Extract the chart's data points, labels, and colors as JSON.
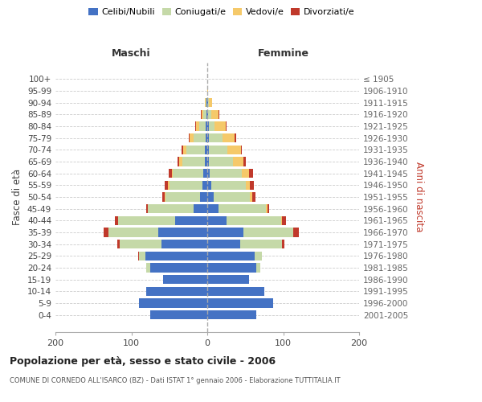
{
  "age_groups": [
    "100+",
    "95-99",
    "90-94",
    "85-89",
    "80-84",
    "75-79",
    "70-74",
    "65-69",
    "60-64",
    "55-59",
    "50-54",
    "45-49",
    "40-44",
    "35-39",
    "30-34",
    "25-29",
    "20-24",
    "15-19",
    "10-14",
    "5-9",
    "0-4"
  ],
  "birth_years": [
    "≤ 1905",
    "1906-1910",
    "1911-1915",
    "1916-1920",
    "1921-1925",
    "1926-1930",
    "1931-1935",
    "1936-1940",
    "1941-1945",
    "1946-1950",
    "1951-1955",
    "1956-1960",
    "1961-1965",
    "1966-1970",
    "1971-1975",
    "1976-1980",
    "1981-1985",
    "1986-1990",
    "1991-1995",
    "1996-2000",
    "2001-2005"
  ],
  "maschi": {
    "celibi": [
      0,
      0,
      1,
      1,
      2,
      2,
      3,
      3,
      5,
      6,
      9,
      18,
      42,
      65,
      60,
      82,
      75,
      58,
      80,
      90,
      75
    ],
    "coniugati": [
      0,
      0,
      1,
      4,
      9,
      16,
      24,
      30,
      40,
      44,
      46,
      60,
      75,
      65,
      55,
      8,
      5,
      0,
      0,
      0,
      0
    ],
    "vedovi": [
      0,
      0,
      1,
      2,
      4,
      5,
      5,
      4,
      2,
      2,
      1,
      0,
      0,
      0,
      0,
      0,
      0,
      0,
      0,
      0,
      0
    ],
    "divorziati": [
      0,
      0,
      0,
      1,
      1,
      1,
      2,
      2,
      4,
      4,
      3,
      2,
      5,
      7,
      4,
      1,
      0,
      0,
      0,
      0,
      0
    ]
  },
  "femmine": {
    "nubili": [
      0,
      0,
      1,
      1,
      2,
      2,
      2,
      2,
      3,
      5,
      8,
      15,
      25,
      48,
      43,
      62,
      65,
      55,
      75,
      87,
      65
    ],
    "coniugate": [
      0,
      0,
      1,
      4,
      8,
      18,
      24,
      32,
      42,
      46,
      48,
      62,
      72,
      65,
      55,
      10,
      5,
      0,
      0,
      0,
      0
    ],
    "vedove": [
      0,
      1,
      4,
      10,
      14,
      16,
      18,
      14,
      10,
      5,
      3,
      2,
      1,
      0,
      0,
      0,
      0,
      0,
      0,
      0,
      0
    ],
    "divorziate": [
      0,
      0,
      0,
      1,
      1,
      2,
      2,
      3,
      5,
      5,
      4,
      3,
      6,
      8,
      4,
      0,
      0,
      0,
      0,
      0,
      0
    ]
  },
  "colors": {
    "celibi": "#4472C4",
    "coniugati": "#C5D9A8",
    "vedovi": "#F5C96A",
    "divorziati": "#C0392B"
  },
  "title": "Popolazione per età, sesso e stato civile - 2006",
  "subtitle": "COMUNE DI CORNEDO ALL'ISARCO (BZ) - Dati ISTAT 1° gennaio 2006 - Elaborazione TUTTITALIA.IT",
  "ylabel_left": "Fasce di età",
  "ylabel_right": "Anni di nascita",
  "xlabel_left": "Maschi",
  "xlabel_right": "Femmine",
  "xlim": 200,
  "legend_labels": [
    "Celibi/Nubili",
    "Coniugati/e",
    "Vedovi/e",
    "Divorziati/e"
  ]
}
